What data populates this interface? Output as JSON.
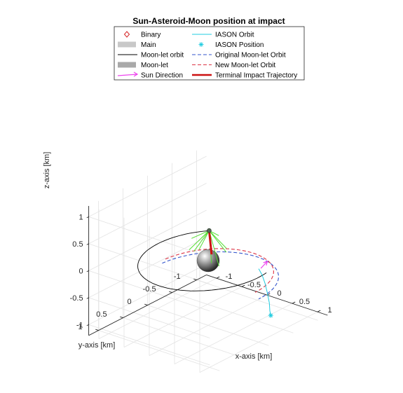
{
  "chart_data": {
    "type": "3d-line",
    "title": "Sun-Asteroid-Moon position at impact",
    "xlabel": "x-axis [km]",
    "ylabel": "y-axis [km]",
    "zlabel": "z-axis [km]",
    "xlim": [
      -1.2,
      1.2
    ],
    "ylim": [
      -1.2,
      1.2
    ],
    "zlim": [
      -1.2,
      1.2
    ],
    "x_ticks": [
      "-1",
      "-0.5",
      "0",
      "0.5",
      "1"
    ],
    "y_ticks": [
      "-1",
      "-0.5",
      "0",
      "0.5",
      "1"
    ],
    "z_ticks": [
      "-1",
      "-0.5",
      "0",
      "0.5",
      "1"
    ],
    "grid": true,
    "legend_position": "top",
    "legend": [
      {
        "label": "Binary",
        "marker": "diamond",
        "color": "#d62728"
      },
      {
        "label": "Main",
        "marker": "patch",
        "color": "#c8c8c8"
      },
      {
        "label": "Moon-let orbit",
        "line": "solid",
        "color": "#000000"
      },
      {
        "label": "Moon-let",
        "marker": "patch",
        "color": "#a9a9a9"
      },
      {
        "label": "Sun Direction",
        "line": "arrow",
        "color": "#ee44ee"
      },
      {
        "label": "IASON Orbit",
        "line": "solid",
        "color": "#22cce0"
      },
      {
        "label": "IASON Position",
        "marker": "star",
        "color": "#22cce0"
      },
      {
        "label": "Original Moon-let Orbit",
        "line": "dashed",
        "color": "#3355cc"
      },
      {
        "label": "New Moon-let Orbit",
        "line": "dashed",
        "color": "#dd3344"
      },
      {
        "label": "Terminal Impact Trajectory",
        "line": "solid",
        "color": "#cc1111"
      }
    ],
    "colors": {
      "moonlet_orbit": "#000000",
      "original_orbit": "#3355cc",
      "new_orbit": "#dd3344",
      "iason": "#22cce0",
      "sun": "#ee44ee",
      "impact": "#cc1111",
      "debris": "#55dd33"
    },
    "main_body": {
      "center": [
        0,
        0,
        0
      ],
      "radius": 0.2
    },
    "moonlet_orbit": {
      "center": [
        0,
        0,
        0
      ],
      "radius": 1.0,
      "z": 0,
      "angle_start_deg": -10,
      "angle_end_deg": 225
    },
    "original_orbit": {
      "center": [
        0,
        0,
        -0.4
      ],
      "radius": 1.0,
      "angle_start_deg": 185,
      "angle_end_deg": 360
    },
    "new_orbit": {
      "center": [
        0,
        0,
        -0.3
      ],
      "radius": 0.93,
      "angle_start_deg": 185,
      "angle_end_deg": 360
    },
    "iason_orbit": [
      [
        1.05,
        0.05,
        0.2
      ],
      [
        1.05,
        -0.02,
        0.05
      ],
      [
        1.03,
        -0.1,
        -0.15
      ],
      [
        1.0,
        -0.18,
        -0.38
      ],
      [
        0.97,
        -0.25,
        -0.6
      ],
      [
        0.93,
        -0.3,
        -0.78
      ],
      [
        0.9,
        -0.35,
        -0.9
      ]
    ],
    "iason_position": [
      0.9,
      -0.35,
      -0.9
    ],
    "sun_direction": {
      "from": [
        0.12,
        -0.95,
        -0.55
      ],
      "to": [
        0.2,
        -1.0,
        -0.42
      ]
    },
    "impact_point": [
      -0.69,
      -0.73,
      0.0
    ],
    "terminal_trajectory": {
      "from": [
        -0.69,
        -0.73,
        0.0
      ],
      "to": [
        -1.05,
        -1.15,
        -0.75
      ]
    },
    "debris_directions": [
      [
        -1.25,
        -1.1,
        -0.7
      ],
      [
        -1.3,
        -1.2,
        -0.55
      ],
      [
        -1.35,
        -1.05,
        -0.5
      ],
      [
        -1.2,
        -1.3,
        -0.75
      ],
      [
        -1.15,
        -1.4,
        -0.55
      ],
      [
        -1.05,
        -1.45,
        -0.85
      ],
      [
        -1.1,
        -1.2,
        -0.95
      ],
      [
        -0.95,
        -1.35,
        -0.7
      ],
      [
        -1.3,
        -0.95,
        -0.65
      ],
      [
        -1.0,
        -1.25,
        -1.0
      ],
      [
        -1.25,
        -1.3,
        -0.4
      ],
      [
        -1.4,
        -1.15,
        -0.8
      ]
    ]
  }
}
